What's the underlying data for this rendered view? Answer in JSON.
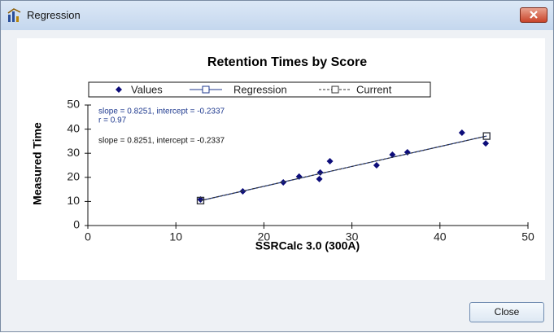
{
  "window": {
    "title": "Regression",
    "button": "Close"
  },
  "chart_data": {
    "type": "scatter",
    "title": "Retention Times by Score",
    "xlabel": "SSRCalc 3.0 (300A)",
    "ylabel": "Measured Time",
    "xlim": [
      0,
      50
    ],
    "xticks": [
      0,
      10,
      20,
      30,
      40,
      50
    ],
    "ylim": [
      0,
      50
    ],
    "yticks": [
      0,
      10,
      20,
      30,
      40,
      50
    ],
    "series": [
      {
        "name": "Values",
        "color": "#0d0d7a",
        "marker": "diamond",
        "line": "none",
        "x": [
          12.8,
          17.6,
          22.2,
          24.0,
          26.3,
          26.4,
          27.5,
          32.8,
          34.6,
          36.3,
          42.5,
          45.2
        ],
        "values": [
          10.8,
          14.2,
          17.9,
          20.3,
          19.3,
          22.0,
          26.7,
          25.0,
          29.4,
          30.4,
          38.5,
          34.1
        ]
      },
      {
        "name": "Regression",
        "color": "#1f3a8f",
        "marker": "square",
        "line": "solid",
        "x": [
          12.8,
          45.3
        ],
        "values": [
          10.33,
          37.14
        ]
      },
      {
        "name": "Current",
        "color": "#333333",
        "marker": "square",
        "line": "dashed",
        "x": [
          12.8,
          45.3
        ],
        "values": [
          10.33,
          37.14
        ]
      }
    ],
    "annotations": [
      {
        "text": "slope = 0.8251, intercept = -0.2337",
        "color": "#1f3a8f"
      },
      {
        "text": "r = 0.97",
        "color": "#1f3a8f"
      },
      {
        "text": "slope = 0.8251, intercept = -0.2337",
        "color": "#111111"
      }
    ]
  }
}
